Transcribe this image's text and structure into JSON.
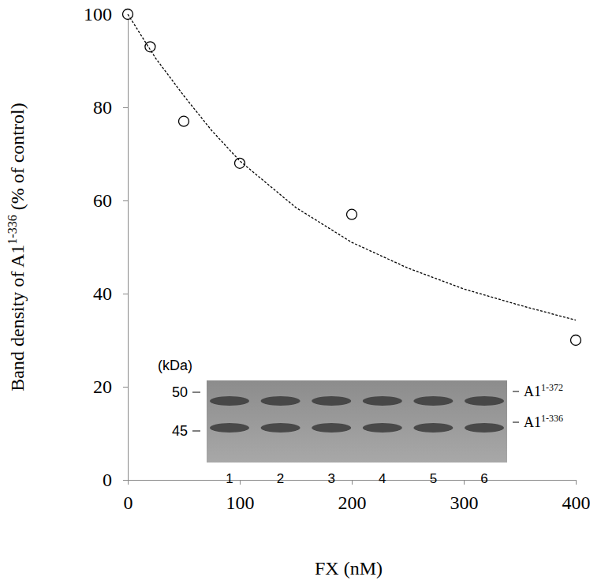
{
  "chart_data": {
    "type": "scatter",
    "xlabel": "FX (nM)",
    "ylabel": {
      "text": "Band density of A1",
      "superscript": "1-336",
      "after": "(% of control)"
    },
    "xlim": [
      0,
      400
    ],
    "xticks": [
      0,
      100,
      200,
      300,
      400
    ],
    "ylim": [
      0,
      100
    ],
    "yticks": [
      0,
      20,
      40,
      60,
      80,
      100
    ],
    "grid": false,
    "series": [
      {
        "type": "scatter",
        "marker": "circle-open",
        "color": "#000000",
        "x": [
          0,
          20,
          50,
          100,
          200,
          400
        ],
        "values": [
          100,
          93,
          77,
          68,
          57,
          30
        ]
      },
      {
        "type": "line",
        "line_style": "dashed",
        "color": "#000000",
        "x": [
          0,
          25,
          50,
          75,
          100,
          150,
          200,
          250,
          300,
          350,
          400
        ],
        "values": [
          100,
          90.5,
          82.5,
          75,
          68.5,
          58.5,
          51,
          45.5,
          41,
          37.5,
          34.3
        ]
      }
    ],
    "inset": {
      "unit": "(kDa)",
      "size_markers": [
        50,
        45
      ],
      "lanes": [
        "1",
        "2",
        "3",
        "4",
        "5",
        "6"
      ],
      "bands": [
        {
          "text": "A1",
          "superscript": "1-372"
        },
        {
          "text": "A1",
          "superscript": "1-336"
        }
      ]
    }
  }
}
